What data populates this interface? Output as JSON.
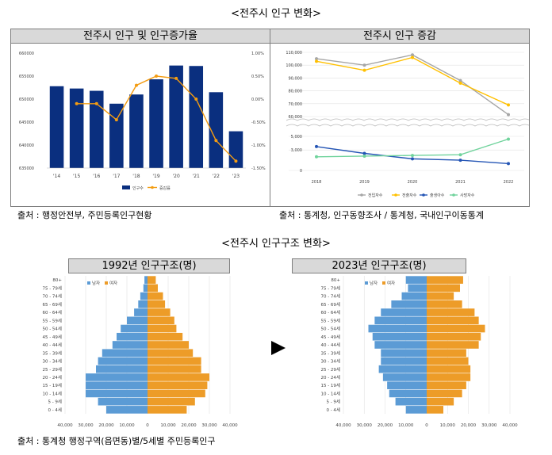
{
  "section1_title": "<전주시 인구 변화>",
  "section2_title": "<전주시 인구구조 변화>",
  "chart1": {
    "title": "전주시 인구 및 인구증가율",
    "type": "bar",
    "categories": [
      "'14",
      "'15",
      "'16",
      "'17",
      "'18",
      "'19",
      "'20",
      "'21",
      "'22",
      "'23"
    ],
    "left_ticks": [
      "660000",
      "655000",
      "650000",
      "645000",
      "640000",
      "635000"
    ],
    "right_ticks": [
      "1.00%",
      "0.50%",
      "0.00%",
      "-0.50%",
      "-1.00%",
      "-1.50%"
    ],
    "legend_bar": "인구수",
    "legend_line": "증감률",
    "bar_color": "#0a2f7f",
    "line_color": "#f39c12",
    "ylim": [
      635000,
      660000
    ],
    "y2lim": [
      -1.5,
      1.0
    ],
    "population": [
      652800,
      652300,
      651800,
      649000,
      651000,
      654300,
      657300,
      657200,
      651500,
      643000
    ],
    "growth_rate": [
      null,
      -0.1,
      -0.1,
      -0.45,
      0.3,
      0.5,
      0.45,
      0.0,
      -0.9,
      -1.35
    ]
  },
  "chart2": {
    "title": "전주시 인구 증감",
    "type": "line",
    "categories": [
      "2018",
      "2019",
      "2020",
      "2021",
      "2022"
    ],
    "upper_ticks": [
      "110,000",
      "100,000",
      "90,000",
      "80,000",
      "70,000",
      "60,000"
    ],
    "lower_ticks": [
      "5,000",
      "3,000",
      "0"
    ],
    "series": [
      {
        "name": "전입자수",
        "color": "#a6a6a6",
        "values": [
          105000,
          100000,
          108000,
          88000,
          61500
        ]
      },
      {
        "name": "전출자수",
        "color": "#ffc000",
        "values": [
          103000,
          96000,
          106000,
          86000,
          69000
        ]
      },
      {
        "name": "출생아수",
        "color": "#2455b5",
        "values": [
          3500,
          2500,
          1700,
          1500,
          1000
        ]
      },
      {
        "name": "사망자수",
        "color": "#70d39c",
        "values": [
          2000,
          2100,
          2200,
          2300,
          4600
        ]
      }
    ]
  },
  "source1": "출처 : 행정안전부, 주민등록인구현황",
  "source2": "출처 : 통계청, 인구동향조사 / 통계청, 국내인구이동통계",
  "source3": "출처 : 통계청 행정구역(읍면동)별/5세별 주민등록인구",
  "pyramid_1992": {
    "title": "1992년 인구구조(명)",
    "type": "bar",
    "age_groups": [
      "80+",
      "75 - 79세",
      "70 - 74세",
      "65 - 69세",
      "60 - 64세",
      "55 - 59세",
      "50 - 54세",
      "45 - 49세",
      "40 - 44세",
      "35 - 39세",
      "30 - 34세",
      "25 - 29세",
      "20 - 24세",
      "15 - 19세",
      "10 - 14세",
      "5 - 9세",
      "0 - 4세"
    ],
    "male": [
      1500,
      2000,
      3500,
      4500,
      6500,
      10000,
      13000,
      15000,
      17000,
      22000,
      24000,
      25000,
      30000,
      30000,
      30000,
      24000,
      20000
    ],
    "female": [
      4000,
      5000,
      7500,
      8500,
      11000,
      13000,
      14000,
      17000,
      20000,
      22000,
      26000,
      26000,
      30000,
      29000,
      28000,
      23000,
      19000
    ],
    "legend_male": "남자",
    "legend_female": "여자",
    "male_color": "#5b9bd5",
    "female_color": "#ed9c28",
    "x_ticks": [
      "40,000",
      "30,000",
      "20,000",
      "10,000",
      "0",
      "10,000",
      "20,000",
      "30,000",
      "40,000"
    ]
  },
  "pyramid_2023": {
    "title": "2023년 인구구조(명)",
    "type": "bar",
    "age_groups": [
      "80+",
      "75 - 79세",
      "70 - 74세",
      "65 - 69세",
      "60 - 64세",
      "55 - 59세",
      "50 - 54세",
      "45 - 49세",
      "40 - 44세",
      "35 - 39세",
      "30 - 34세",
      "25 - 29세",
      "20 - 24세",
      "15 - 19세",
      "10 - 14세",
      "5 - 9세",
      "0 - 4세"
    ],
    "male": [
      10000,
      9000,
      12000,
      17000,
      22000,
      25000,
      28000,
      26000,
      25000,
      22000,
      22000,
      23000,
      21000,
      19000,
      18000,
      15000,
      10000
    ],
    "female": [
      17500,
      16000,
      13000,
      17000,
      23000,
      25000,
      28000,
      26000,
      25000,
      19000,
      20000,
      21000,
      21000,
      19000,
      17000,
      13000,
      8000
    ],
    "legend_male": "남자",
    "legend_female": "여자",
    "male_color": "#5b9bd5",
    "female_color": "#ed9c28",
    "x_ticks": [
      "40,000",
      "30,000",
      "20,000",
      "10,000",
      "0",
      "10,000",
      "20,000",
      "30,000",
      "40,000"
    ]
  }
}
